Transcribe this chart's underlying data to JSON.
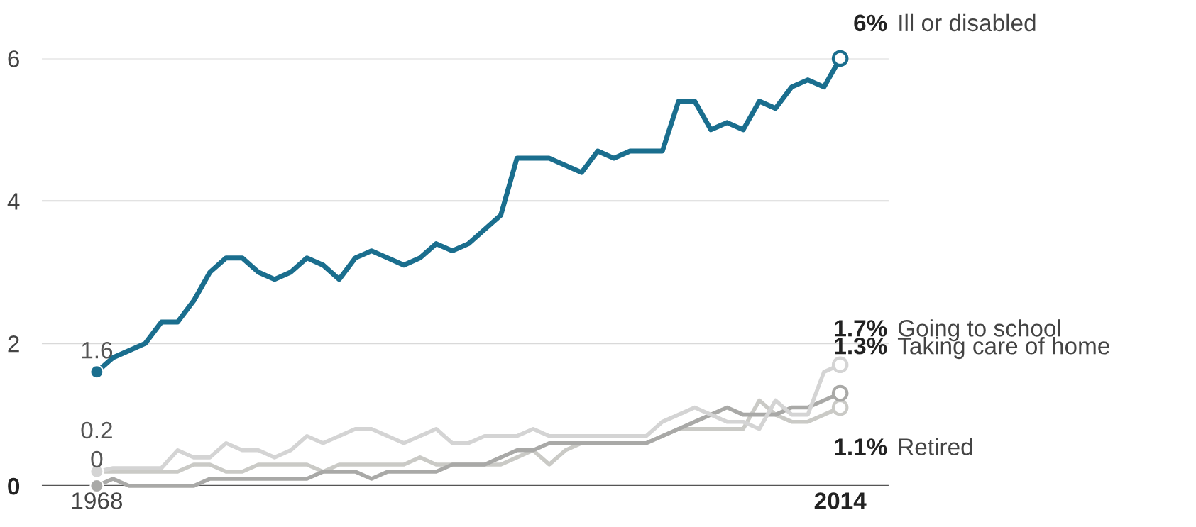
{
  "chart_data": {
    "type": "line",
    "x": [
      1968,
      1969,
      1970,
      1971,
      1972,
      1973,
      1974,
      1975,
      1976,
      1977,
      1978,
      1979,
      1980,
      1981,
      1982,
      1983,
      1984,
      1985,
      1986,
      1987,
      1988,
      1989,
      1990,
      1991,
      1992,
      1993,
      1994,
      1995,
      1996,
      1997,
      1998,
      1999,
      2000,
      2001,
      2002,
      2003,
      2004,
      2005,
      2006,
      2007,
      2008,
      2009,
      2010,
      2011,
      2012,
      2013,
      2014
    ],
    "series": [
      {
        "name": "Ill or disabled",
        "color": "#1a6e8e",
        "values": [
          1.6,
          1.8,
          1.9,
          2.0,
          2.3,
          2.3,
          2.6,
          3.0,
          3.2,
          3.2,
          3.0,
          2.9,
          3.0,
          3.2,
          3.1,
          2.9,
          3.2,
          3.3,
          3.2,
          3.1,
          3.2,
          3.4,
          3.3,
          3.4,
          3.6,
          3.8,
          4.6,
          4.6,
          4.6,
          4.5,
          4.4,
          4.7,
          4.6,
          4.7,
          4.7,
          4.7,
          5.4,
          5.4,
          5.0,
          5.1,
          5.0,
          5.4,
          5.3,
          5.6,
          5.7,
          5.6,
          6.0
        ],
        "value_labels": [
          "1.6",
          null,
          null,
          null,
          null,
          null,
          null,
          null,
          null,
          null,
          null,
          null,
          null,
          null,
          null,
          null,
          null,
          null,
          null,
          null,
          null,
          null,
          null,
          null,
          null,
          null,
          null,
          null,
          null,
          null,
          null,
          null,
          null,
          null,
          null,
          null,
          null,
          null,
          null,
          null,
          null,
          null,
          null,
          null,
          null,
          null,
          "6%"
        ]
      },
      {
        "name": "Going to school",
        "color": "#d4d4d4",
        "values": [
          0.2,
          0.25,
          0.25,
          0.25,
          0.25,
          0.5,
          0.4,
          0.4,
          0.6,
          0.5,
          0.5,
          0.4,
          0.5,
          0.7,
          0.6,
          0.7,
          0.8,
          0.8,
          0.7,
          0.6,
          0.7,
          0.8,
          0.6,
          0.6,
          0.7,
          0.7,
          0.7,
          0.8,
          0.7,
          0.7,
          0.7,
          0.7,
          0.7,
          0.7,
          0.7,
          0.9,
          1.0,
          1.1,
          1.0,
          0.9,
          0.9,
          0.8,
          1.2,
          1.0,
          1.0,
          1.6,
          1.7
        ],
        "value_labels": [
          "0.2",
          null,
          null,
          null,
          null,
          null,
          null,
          null,
          null,
          null,
          null,
          null,
          null,
          null,
          null,
          null,
          null,
          null,
          null,
          null,
          null,
          null,
          null,
          null,
          null,
          null,
          null,
          null,
          null,
          null,
          null,
          null,
          null,
          null,
          null,
          null,
          null,
          null,
          null,
          null,
          null,
          null,
          null,
          null,
          null,
          null,
          "1.7%"
        ]
      },
      {
        "name": "Taking care of home",
        "color": "#a9a9a7",
        "values": [
          0,
          0.1,
          0,
          0,
          0,
          0,
          0,
          0.1,
          0.1,
          0.1,
          0.1,
          0.1,
          0.1,
          0.1,
          0.2,
          0.2,
          0.2,
          0.1,
          0.2,
          0.2,
          0.2,
          0.2,
          0.3,
          0.3,
          0.3,
          0.4,
          0.5,
          0.5,
          0.6,
          0.6,
          0.6,
          0.6,
          0.6,
          0.6,
          0.6,
          0.7,
          0.8,
          0.9,
          1.0,
          1.1,
          1.0,
          1.0,
          1.0,
          1.1,
          1.1,
          1.2,
          1.3
        ],
        "value_labels": [
          "0",
          null,
          null,
          null,
          null,
          null,
          null,
          null,
          null,
          null,
          null,
          null,
          null,
          null,
          null,
          null,
          null,
          null,
          null,
          null,
          null,
          null,
          null,
          null,
          null,
          null,
          null,
          null,
          null,
          null,
          null,
          null,
          null,
          null,
          null,
          null,
          null,
          null,
          null,
          null,
          null,
          null,
          null,
          null,
          null,
          null,
          "1.3%"
        ]
      },
      {
        "name": "Retired",
        "color": "#cacac6",
        "values": [
          0.2,
          0.2,
          0.2,
          0.2,
          0.2,
          0.2,
          0.3,
          0.3,
          0.2,
          0.2,
          0.3,
          0.3,
          0.3,
          0.3,
          0.2,
          0.3,
          0.3,
          0.3,
          0.3,
          0.3,
          0.4,
          0.3,
          0.3,
          0.3,
          0.3,
          0.3,
          0.4,
          0.5,
          0.3,
          0.5,
          0.6,
          0.6,
          0.6,
          0.6,
          0.6,
          0.7,
          0.8,
          0.8,
          0.8,
          0.8,
          0.8,
          1.2,
          1.0,
          0.9,
          0.9,
          1.0,
          1.1
        ],
        "value_labels": [
          null,
          null,
          null,
          null,
          null,
          null,
          null,
          null,
          null,
          null,
          null,
          null,
          null,
          null,
          null,
          null,
          null,
          null,
          null,
          null,
          null,
          null,
          null,
          null,
          null,
          null,
          null,
          null,
          null,
          null,
          null,
          null,
          null,
          null,
          null,
          null,
          null,
          null,
          null,
          null,
          null,
          null,
          null,
          null,
          null,
          null,
          "1.1%"
        ]
      }
    ],
    "xlim": [
      1964.6,
      2017
    ],
    "xticks": [
      1968,
      2014
    ],
    "ylim": [
      0,
      6
    ],
    "yticks": [
      0,
      2,
      4,
      6
    ],
    "grid": "y",
    "line_style": "solid"
  }
}
